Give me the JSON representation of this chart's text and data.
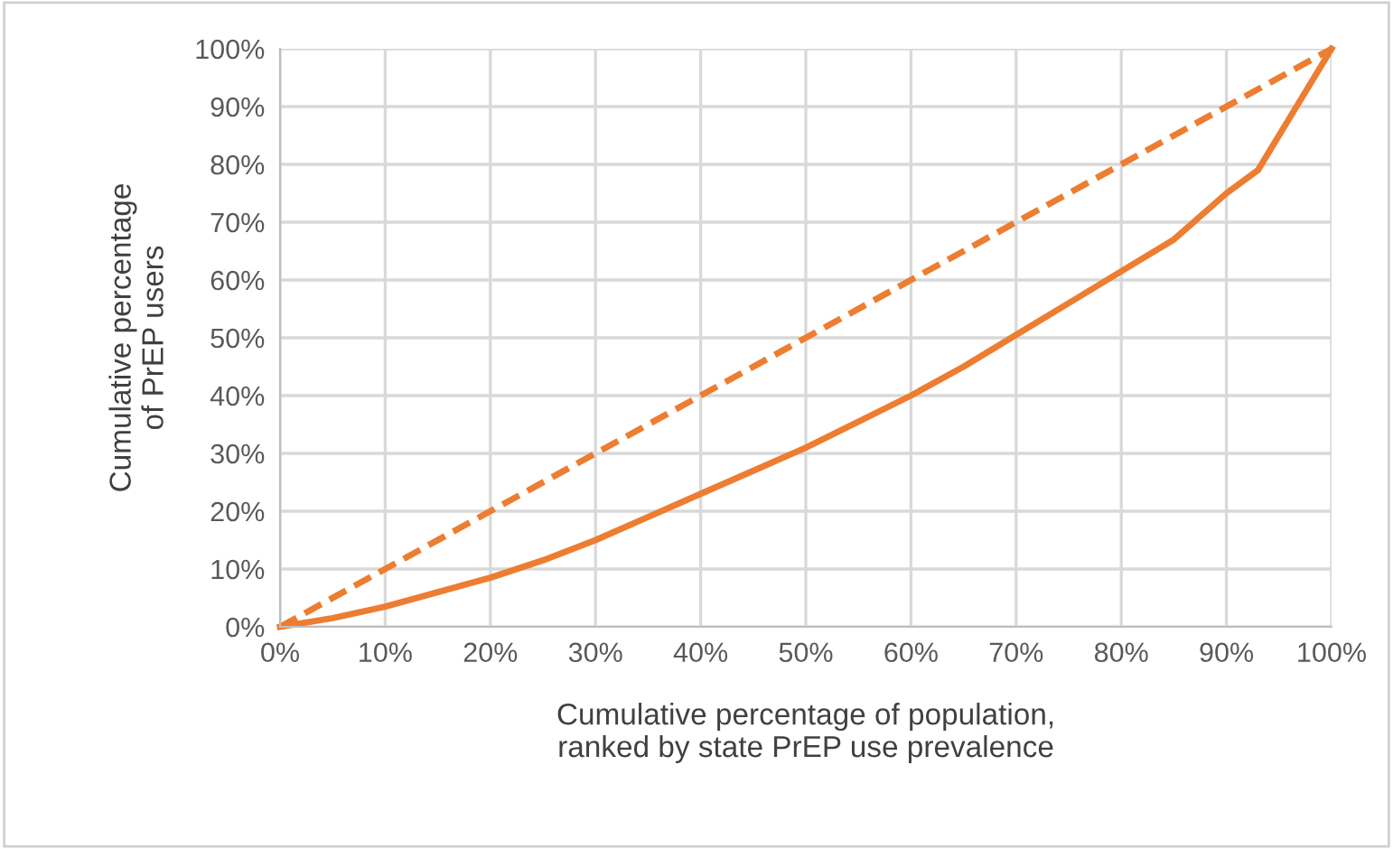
{
  "chart_data": {
    "type": "line",
    "xlabel": "Cumulative percentage of population,\nranked by state PrEP use prevalence",
    "ylabel": "Cumulative percentage\nof PrEP users",
    "xlim": [
      0,
      100
    ],
    "ylim": [
      0,
      100
    ],
    "xticks": [
      {
        "value": 0,
        "label": "0%"
      },
      {
        "value": 10,
        "label": "10%"
      },
      {
        "value": 20,
        "label": "20%"
      },
      {
        "value": 30,
        "label": "30%"
      },
      {
        "value": 40,
        "label": "40%"
      },
      {
        "value": 50,
        "label": "50%"
      },
      {
        "value": 60,
        "label": "60%"
      },
      {
        "value": 70,
        "label": "70%"
      },
      {
        "value": 80,
        "label": "80%"
      },
      {
        "value": 90,
        "label": "90%"
      },
      {
        "value": 100,
        "label": "100%"
      }
    ],
    "yticks": [
      {
        "value": 0,
        "label": "0%"
      },
      {
        "value": 10,
        "label": "10%"
      },
      {
        "value": 20,
        "label": "20%"
      },
      {
        "value": 30,
        "label": "30%"
      },
      {
        "value": 40,
        "label": "40%"
      },
      {
        "value": 50,
        "label": "50%"
      },
      {
        "value": 60,
        "label": "60%"
      },
      {
        "value": 70,
        "label": "70%"
      },
      {
        "value": 80,
        "label": "80%"
      },
      {
        "value": 90,
        "label": "90%"
      },
      {
        "value": 100,
        "label": "100%"
      }
    ],
    "grid": true,
    "marker": "none",
    "series": [
      {
        "color": "#ed7d31",
        "line_style": "solid",
        "x": [
          0,
          5,
          10,
          15,
          20,
          25,
          30,
          35,
          40,
          45,
          50,
          55,
          60,
          65,
          70,
          75,
          80,
          85,
          90,
          93,
          96,
          100
        ],
        "values": [
          0,
          1.5,
          3.5,
          6,
          8.5,
          11.5,
          15,
          19,
          23,
          27,
          31,
          35.5,
          40,
          45,
          50.5,
          56,
          61.5,
          67,
          75,
          79,
          88,
          100
        ]
      },
      {
        "color": "#ed7d31",
        "line_style": "dashed",
        "x": [
          0,
          100
        ],
        "values": [
          0,
          100
        ]
      }
    ]
  }
}
